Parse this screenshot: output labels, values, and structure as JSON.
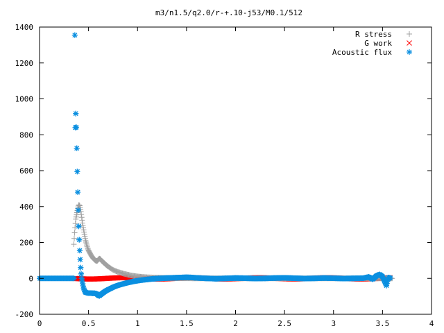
{
  "chart_data": {
    "type": "scatter",
    "title": "m3/n1.5/q2.0/r-+.10-j53/M0.1/512",
    "xlabel": "",
    "ylabel": "",
    "xlim": [
      0,
      4
    ],
    "ylim": [
      -200,
      1400
    ],
    "xticks": [
      "0",
      "0.5",
      "1",
      "1.5",
      "2",
      "2.5",
      "3",
      "3.5",
      "4"
    ],
    "yticks": [
      "-200",
      "0",
      "200",
      "400",
      "600",
      "800",
      "1000",
      "1200",
      "1400"
    ],
    "grid": false,
    "legend_position": "top-right",
    "colors": {
      "r_stress": "#a0a0a0",
      "g_work": "#ff0000",
      "acoustic_flux": "#0a8fe0"
    },
    "series": [
      {
        "name": "R stress",
        "marker": "plus",
        "points": [
          [
            0.35,
            190
          ],
          [
            0.36,
            270
          ],
          [
            0.37,
            330
          ],
          [
            0.38,
            360
          ],
          [
            0.39,
            390
          ],
          [
            0.4,
            410
          ],
          [
            0.41,
            405
          ],
          [
            0.42,
            380
          ],
          [
            0.43,
            340
          ],
          [
            0.44,
            300
          ],
          [
            0.45,
            270
          ],
          [
            0.46,
            240
          ],
          [
            0.47,
            210
          ],
          [
            0.48,
            190
          ],
          [
            0.49,
            170
          ],
          [
            0.5,
            155
          ],
          [
            0.51,
            145
          ],
          [
            0.52,
            135
          ],
          [
            0.53,
            125
          ],
          [
            0.54,
            118
          ],
          [
            0.55,
            110
          ],
          [
            0.56,
            105
          ],
          [
            0.57,
            100
          ],
          [
            0.58,
            97
          ],
          [
            0.59,
            98
          ],
          [
            0.6,
            105
          ],
          [
            0.61,
            110
          ],
          [
            0.62,
            108
          ],
          [
            0.63,
            100
          ],
          [
            0.64,
            95
          ],
          [
            0.66,
            85
          ],
          [
            0.68,
            75
          ],
          [
            0.7,
            66
          ],
          [
            0.72,
            58
          ],
          [
            0.74,
            51
          ],
          [
            0.76,
            45
          ],
          [
            0.78,
            40
          ],
          [
            0.8,
            36
          ],
          [
            0.83,
            31
          ],
          [
            0.86,
            26
          ],
          [
            0.89,
            22
          ],
          [
            0.92,
            18
          ],
          [
            0.95,
            15
          ],
          [
            1.0,
            11
          ],
          [
            1.05,
            8
          ],
          [
            1.1,
            6
          ],
          [
            1.2,
            4
          ],
          [
            1.3,
            2
          ],
          [
            1.4,
            1
          ],
          [
            1.6,
            0
          ],
          [
            1.8,
            0
          ],
          [
            2.0,
            0
          ],
          [
            2.3,
            0
          ],
          [
            2.6,
            0
          ],
          [
            3.0,
            0
          ],
          [
            3.4,
            0
          ],
          [
            3.6,
            0
          ]
        ]
      },
      {
        "name": "G work",
        "marker": "cross",
        "x_start": 0.36,
        "x_end": 3.58,
        "y_center": 0,
        "y_spread": 6
      },
      {
        "name": "Acoustic flux",
        "marker": "star",
        "points": [
          [
            0.36,
            1355
          ],
          [
            0.365,
            840
          ],
          [
            0.37,
            918
          ],
          [
            0.375,
            842
          ],
          [
            0.38,
            725
          ],
          [
            0.385,
            595
          ],
          [
            0.39,
            480
          ],
          [
            0.395,
            380
          ],
          [
            0.4,
            290
          ],
          [
            0.405,
            215
          ],
          [
            0.41,
            155
          ],
          [
            0.415,
            105
          ],
          [
            0.42,
            60
          ],
          [
            0.425,
            25
          ],
          [
            0.43,
            0
          ],
          [
            0.44,
            -30
          ],
          [
            0.45,
            -55
          ],
          [
            0.46,
            -70
          ],
          [
            0.47,
            -78
          ],
          [
            0.48,
            -80
          ],
          [
            0.5,
            -82
          ],
          [
            0.52,
            -82
          ],
          [
            0.54,
            -83
          ],
          [
            0.56,
            -83
          ],
          [
            0.58,
            -85
          ],
          [
            0.6,
            -95
          ],
          [
            0.61,
            -98
          ],
          [
            0.62,
            -92
          ],
          [
            0.63,
            -88
          ],
          [
            0.65,
            -80
          ],
          [
            0.67,
            -72
          ],
          [
            0.7,
            -63
          ],
          [
            0.73,
            -55
          ],
          [
            0.76,
            -47
          ],
          [
            0.8,
            -39
          ],
          [
            0.85,
            -31
          ],
          [
            0.9,
            -24
          ],
          [
            0.95,
            -18
          ],
          [
            1.0,
            -13
          ],
          [
            1.05,
            -9
          ],
          [
            1.1,
            -6
          ],
          [
            1.15,
            -3
          ],
          [
            1.2,
            -1
          ],
          [
            1.3,
            2
          ],
          [
            1.4,
            4
          ],
          [
            1.5,
            6
          ],
          [
            1.55,
            5
          ],
          [
            1.6,
            3
          ],
          [
            1.7,
            0
          ],
          [
            1.8,
            -2
          ],
          [
            1.9,
            0
          ],
          [
            2.0,
            2
          ],
          [
            2.1,
            1
          ],
          [
            2.2,
            -1
          ],
          [
            2.3,
            0
          ],
          [
            2.4,
            2
          ],
          [
            2.5,
            3
          ],
          [
            2.6,
            1
          ],
          [
            2.7,
            -1
          ],
          [
            2.8,
            0
          ],
          [
            2.9,
            2
          ],
          [
            3.0,
            1
          ],
          [
            3.1,
            -1
          ],
          [
            3.2,
            0
          ],
          [
            3.3,
            1
          ],
          [
            3.36,
            8
          ],
          [
            3.4,
            -5
          ],
          [
            3.44,
            15
          ],
          [
            3.47,
            22
          ],
          [
            3.5,
            10
          ],
          [
            3.52,
            -15
          ],
          [
            3.54,
            -40
          ],
          [
            3.56,
            5
          ],
          [
            3.58,
            2
          ]
        ],
        "baseline": {
          "x_start": 0.0,
          "x_end": 0.36,
          "y": 0
        }
      }
    ]
  }
}
